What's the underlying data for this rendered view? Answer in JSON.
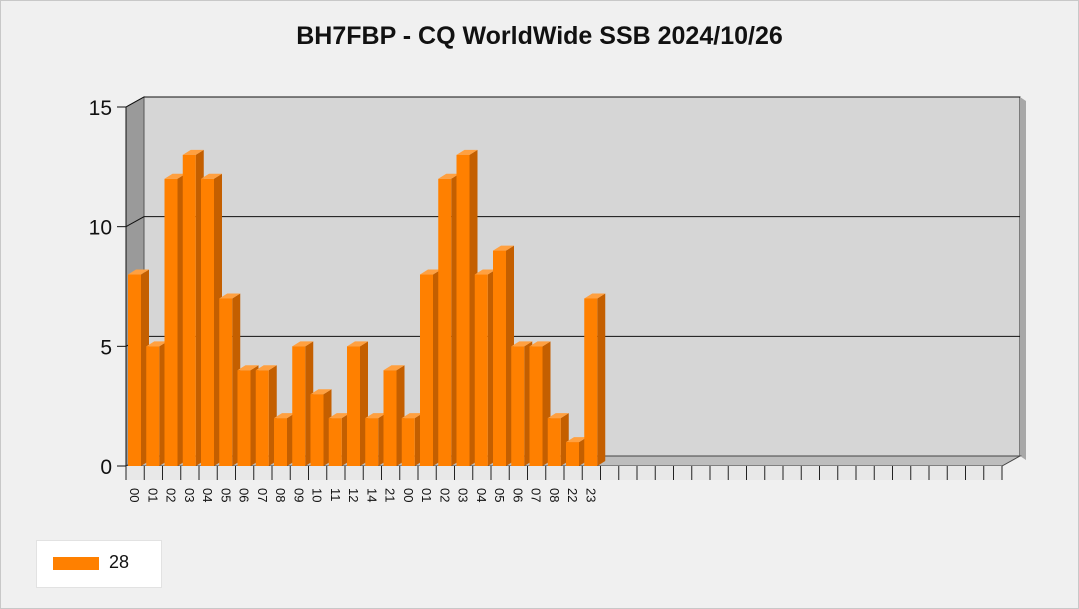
{
  "chart_data": {
    "type": "bar",
    "title": "BH7FBP - CQ WorldWide SSB 2024/10/26",
    "categories": [
      "00",
      "01",
      "02",
      "03",
      "04",
      "05",
      "06",
      "07",
      "08",
      "09",
      "10",
      "11",
      "12",
      "14",
      "21",
      "00",
      "01",
      "02",
      "03",
      "04",
      "05",
      "06",
      "07",
      "08",
      "22",
      "23"
    ],
    "series": [
      {
        "name": "28",
        "values": [
          8,
          5,
          12,
          13,
          12,
          7,
          4,
          4,
          2,
          5,
          3,
          2,
          5,
          2,
          4,
          2,
          8,
          12,
          13,
          8,
          9,
          5,
          5,
          2,
          1,
          7
        ]
      }
    ],
    "total_slots": 48,
    "ylim": [
      0,
      15
    ],
    "yticks": [
      0,
      5,
      10,
      15
    ],
    "grid": true,
    "legend": "bottom-left",
    "xlabel": "",
    "ylabel": ""
  },
  "colors": {
    "bar_front": "#ff8000",
    "bar_side": "#c45f00",
    "bar_top": "#ffa040",
    "plot_back": "#d6d6d6",
    "wall_side": "#9a9a9a",
    "floor": "#bdbdbd"
  }
}
